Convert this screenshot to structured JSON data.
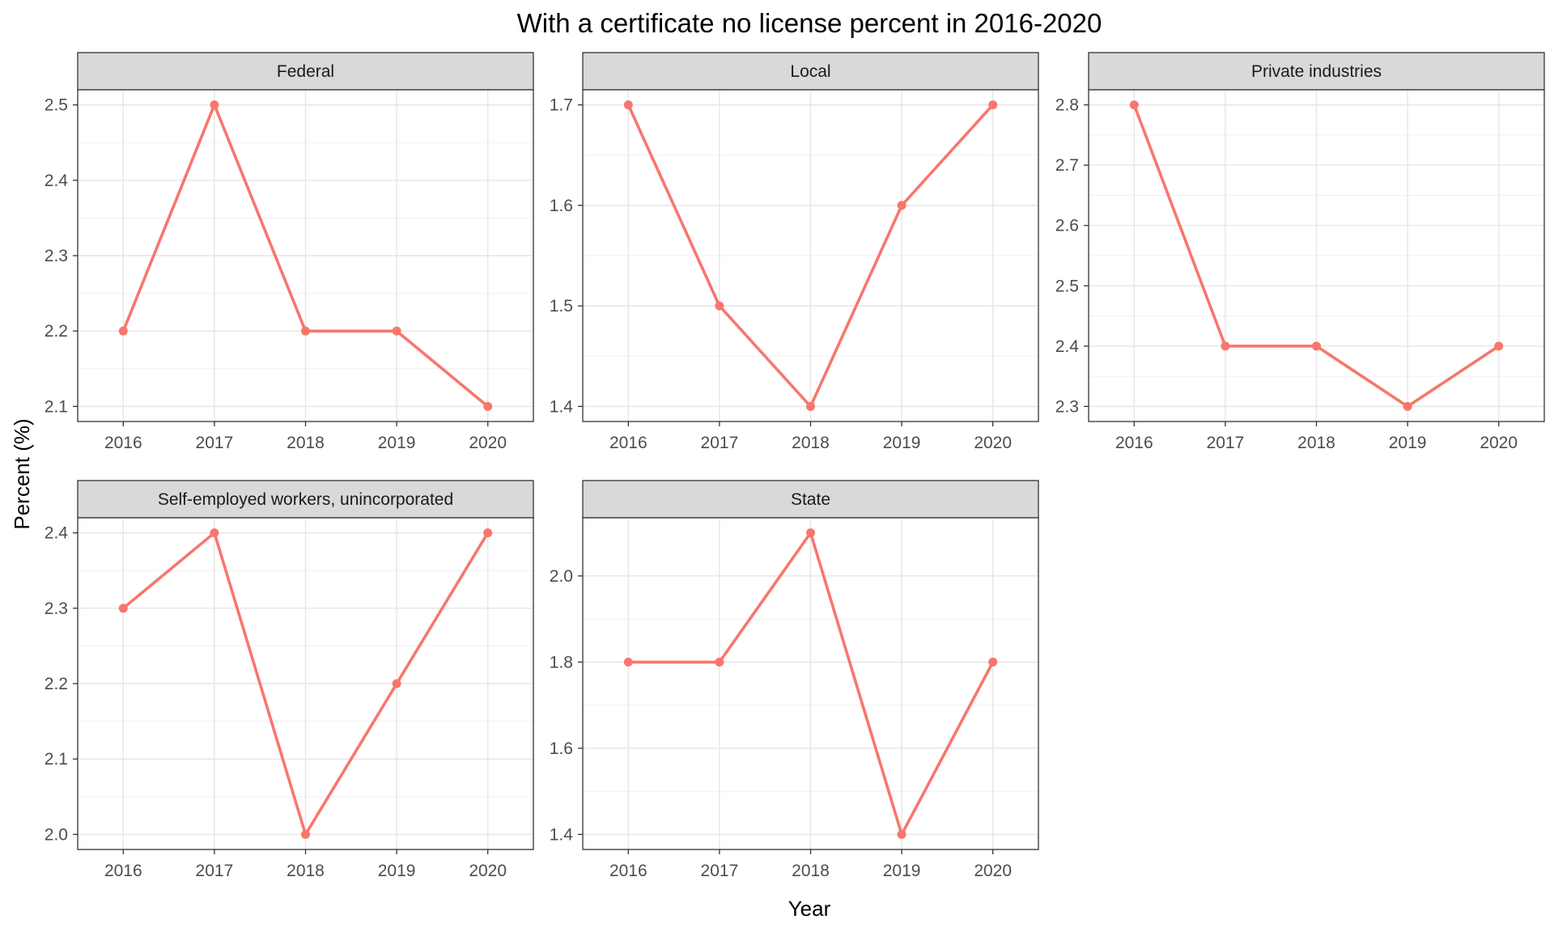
{
  "chart_data": {
    "type": "line",
    "title": "With a certificate no license percent in 2016-2020",
    "xlabel": "Year",
    "ylabel": "Percent (%)",
    "x_ticks": [
      "2016",
      "2017",
      "2018",
      "2019",
      "2020"
    ],
    "x": [
      2016,
      2017,
      2018,
      2019,
      2020
    ],
    "grid": true,
    "line_color": "#F8766D",
    "panels": [
      {
        "name": "Federal",
        "values": [
          2.2,
          2.5,
          2.2,
          2.2,
          2.1
        ],
        "ylim": [
          2.08,
          2.52
        ],
        "y_ticks": [
          "2.1",
          "2.2",
          "2.3",
          "2.4",
          "2.5"
        ]
      },
      {
        "name": "Local",
        "values": [
          1.7,
          1.5,
          1.4,
          1.6,
          1.7
        ],
        "ylim": [
          1.385,
          1.715
        ],
        "y_ticks": [
          "1.4",
          "1.5",
          "1.6",
          "1.7"
        ]
      },
      {
        "name": "Private industries",
        "values": [
          2.8,
          2.4,
          2.4,
          2.3,
          2.4
        ],
        "ylim": [
          2.275,
          2.825
        ],
        "y_ticks": [
          "2.3",
          "2.4",
          "2.5",
          "2.6",
          "2.7",
          "2.8"
        ]
      },
      {
        "name": "Self-employed workers, unincorporated",
        "values": [
          2.3,
          2.4,
          2.0,
          2.2,
          2.4
        ],
        "ylim": [
          1.98,
          2.42
        ],
        "y_ticks": [
          "2.0",
          "2.1",
          "2.2",
          "2.3",
          "2.4"
        ]
      },
      {
        "name": "State",
        "values": [
          1.8,
          1.8,
          2.1,
          1.4,
          1.8
        ],
        "ylim": [
          1.365,
          2.135
        ],
        "y_ticks": [
          "1.4",
          "1.6",
          "1.8",
          "2.0"
        ]
      }
    ]
  }
}
